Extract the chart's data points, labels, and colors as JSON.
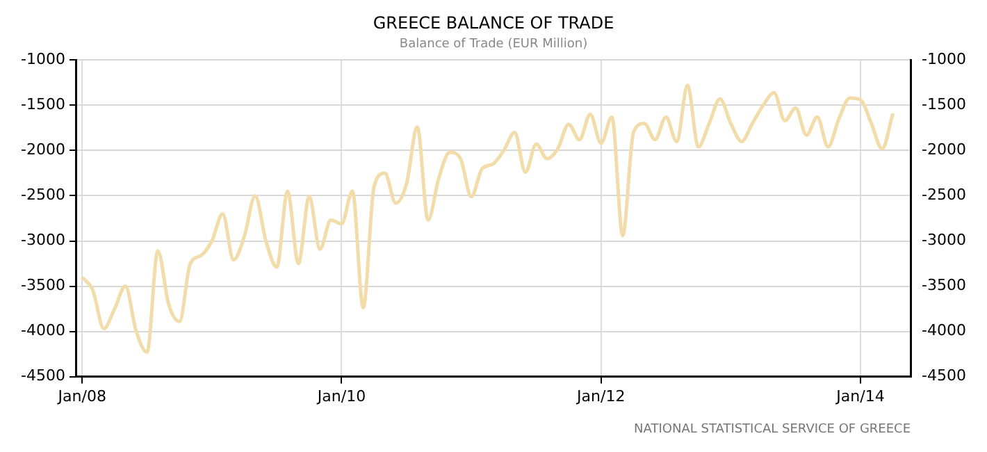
{
  "chart_data": {
    "type": "line",
    "title": "GREECE BALANCE OF TRADE",
    "subtitle": "Balance of Trade (EUR Million)",
    "annotations": [
      "NATIONAL STATISTICAL SERVICE OF GREECE"
    ],
    "x": [
      "2008-01",
      "2008-02",
      "2008-03",
      "2008-04",
      "2008-05",
      "2008-06",
      "2008-07",
      "2008-08",
      "2008-09",
      "2008-10",
      "2008-11",
      "2008-12",
      "2009-01",
      "2009-02",
      "2009-03",
      "2009-04",
      "2009-05",
      "2009-06",
      "2009-07",
      "2009-08",
      "2009-09",
      "2009-10",
      "2009-11",
      "2009-12",
      "2010-01",
      "2010-02",
      "2010-03",
      "2010-04",
      "2010-05",
      "2010-06",
      "2010-07",
      "2010-08",
      "2010-09",
      "2010-10",
      "2010-11",
      "2010-12",
      "2011-01",
      "2011-02",
      "2011-03",
      "2011-04",
      "2011-05",
      "2011-06",
      "2011-07",
      "2011-08",
      "2011-09",
      "2011-10",
      "2011-11",
      "2011-12",
      "2012-01",
      "2012-02",
      "2012-03",
      "2012-04",
      "2012-05",
      "2012-06",
      "2012-07",
      "2012-08",
      "2012-09",
      "2012-10",
      "2012-11",
      "2012-12",
      "2013-01",
      "2013-02",
      "2013-03",
      "2013-04",
      "2013-05",
      "2013-06",
      "2013-07",
      "2013-08",
      "2013-09",
      "2013-10",
      "2013-11",
      "2013-12",
      "2014-01",
      "2014-02",
      "2014-03",
      "2014-04"
    ],
    "series": [
      {
        "color": "#f2dcaa",
        "values": [
          -3400,
          -3550,
          -3970,
          -3750,
          -3500,
          -4000,
          -4230,
          -3110,
          -3700,
          -3890,
          -3250,
          -3160,
          -3000,
          -2700,
          -3210,
          -2950,
          -2500,
          -3000,
          -3290,
          -2450,
          -3250,
          -2510,
          -3090,
          -2770,
          -2810,
          -2450,
          -3740,
          -2400,
          -2250,
          -2580,
          -2370,
          -1740,
          -2770,
          -2300,
          -2020,
          -2090,
          -2510,
          -2200,
          -2150,
          -2000,
          -1800,
          -2240,
          -1930,
          -2090,
          -1980,
          -1710,
          -1880,
          -1600,
          -1920,
          -1630,
          -2940,
          -1800,
          -1700,
          -1880,
          -1630,
          -1900,
          -1280,
          -1960,
          -1700,
          -1430,
          -1700,
          -1900,
          -1700,
          -1500,
          -1360,
          -1670,
          -1530,
          -1830,
          -1630,
          -1960,
          -1650,
          -1420,
          -1440,
          -1700,
          -1980,
          -1590
        ]
      }
    ],
    "xlim": [
      "2007-12-15",
      "2014-05-20"
    ],
    "xticks": [
      {
        "value": "2008-01",
        "label": "Jan/08"
      },
      {
        "value": "2010-01",
        "label": "Jan/10"
      },
      {
        "value": "2012-01",
        "label": "Jan/12"
      },
      {
        "value": "2014-01",
        "label": "Jan/14"
      }
    ],
    "ylim": [
      -4500,
      -1000
    ],
    "yticks": [
      -4500,
      -4000,
      -3500,
      -3000,
      -2500,
      -2000,
      -1500,
      -1000
    ],
    "y2lim": [
      -4500,
      -1000
    ],
    "y2ticks": [
      -4500,
      -4000,
      -3500,
      -3000,
      -2500,
      -2000,
      -1500,
      -1000
    ],
    "grid": true,
    "legend": false,
    "marker": "none",
    "line_style": "solid"
  }
}
